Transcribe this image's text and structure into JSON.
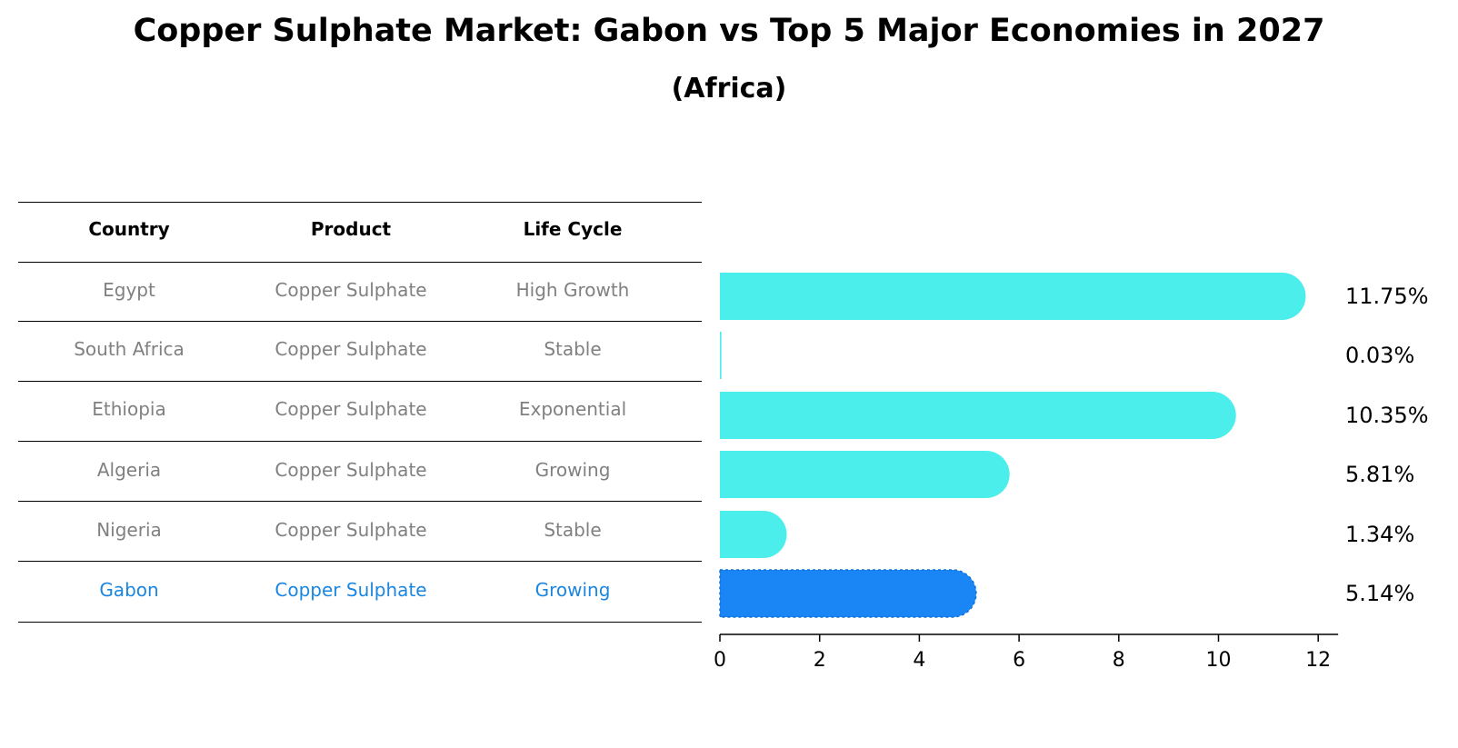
{
  "chart_data": {
    "type": "bar",
    "orientation": "horizontal",
    "title": "Copper Sulphate Market: Gabon vs Top 5 Major Economies in 2027",
    "subtitle": "(Africa)",
    "table": {
      "headers": [
        "Country",
        "Product",
        "Life Cycle"
      ],
      "rows": [
        [
          "Egypt",
          "Copper Sulphate",
          "High Growth"
        ],
        [
          "South Africa",
          "Copper Sulphate",
          "Stable"
        ],
        [
          "Ethiopia",
          "Copper Sulphate",
          "Exponential"
        ],
        [
          "Algeria",
          "Copper Sulphate",
          "Growing"
        ],
        [
          "Nigeria",
          "Copper Sulphate",
          "Stable"
        ],
        [
          "Gabon",
          "Copper Sulphate",
          "Growing"
        ]
      ]
    },
    "categories": [
      "Egypt",
      "South Africa",
      "Ethiopia",
      "Algeria",
      "Nigeria",
      "Gabon"
    ],
    "values": [
      11.75,
      0.03,
      10.35,
      5.81,
      1.34,
      5.14
    ],
    "value_labels": [
      "11.75%",
      "0.03%",
      "10.35%",
      "5.81%",
      "1.34%",
      "5.14%"
    ],
    "highlight": "Gabon",
    "xlim": [
      0,
      12.4
    ],
    "xticks": [
      "0",
      "2",
      "4",
      "6",
      "8",
      "10",
      "12"
    ],
    "xlabel": "",
    "ylabel": "",
    "colors": {
      "bar": "#4beeea",
      "highlight": "#1a86f5",
      "highlight_text": "#1a86e0",
      "muted_text": "#808080"
    }
  }
}
